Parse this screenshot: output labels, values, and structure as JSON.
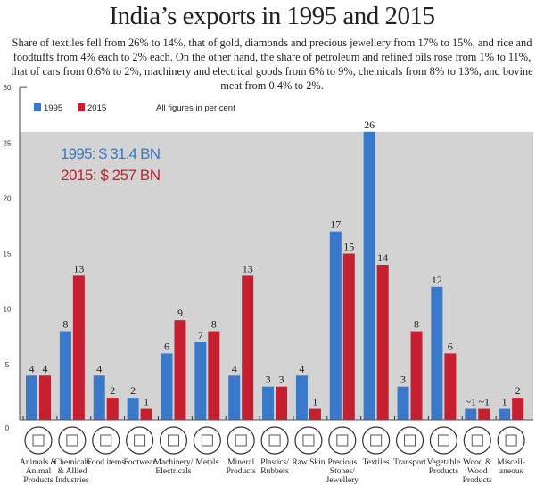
{
  "title": "India’s exports in 1995 and 2015",
  "subtitle": "Share of textiles fell from 26% to 14%, that of gold, diamonds and precious jewellery from 17% to 15%, and rice and foodtuffs from 4% each to 2% each. On the other hand, the share of petroleum and refined oils rose from 1% to 11%, that of cars from 0.6% to 2%, machinery and electrical goods from 6% to 9%, chemicals from 8% to 13%, and bovine meat from 0.4% to 2%.",
  "chart_data": {
    "type": "bar",
    "ylim": [
      0,
      30
    ],
    "yticks": [
      0,
      5,
      10,
      15,
      20,
      25,
      30
    ],
    "legend": "top-left",
    "note": "All figures in per cent",
    "totals": [
      "1995: $ 31.4 BN",
      "2015: $ 257 BN"
    ],
    "colors": {
      "1995": "#3a78c9",
      "2015": "#c62030",
      "background": "#d3d3d3"
    },
    "categories": [
      "Animals & Animal Products",
      "Chemicals & Allied Industries",
      "Food items",
      "Footwear",
      "Machinery/ Electricals",
      "Metals",
      "Mineral Products",
      "Plastics/ Rubbers",
      "Raw Skin",
      "Precious Stones/ Jewellery",
      "Textiles",
      "Transport",
      "Vegetable Products",
      "Wood & Wood Products",
      "Miscell- aneous"
    ],
    "icons": [
      "chicken-icon",
      "flask-icon",
      "bowl-icon",
      "shoe-icon",
      "drill-icon",
      "metal-sheet-icon",
      "mine-cart-icon",
      "bottle-icon",
      "hide-icon",
      "diamond-icon",
      "shirt-icon",
      "truck-icon",
      "tomato-icon",
      "log-icon",
      "box-icon"
    ],
    "series": [
      {
        "name": "1995",
        "values": [
          4,
          8,
          4,
          2,
          6,
          7,
          4,
          3,
          4,
          17,
          26,
          3,
          12,
          1,
          1
        ],
        "labels": [
          "4",
          "8",
          "4",
          "2",
          "6",
          "7",
          "4",
          "3",
          "4",
          "17",
          "26",
          "3",
          "12",
          "~1",
          "1"
        ]
      },
      {
        "name": "2015",
        "values": [
          4,
          13,
          2,
          1,
          9,
          8,
          13,
          3,
          1,
          15,
          14,
          8,
          6,
          1,
          2
        ],
        "labels": [
          "4",
          "13",
          "2",
          "1",
          "9",
          "8",
          "13",
          "3",
          "1",
          "15",
          "14",
          "8",
          "6",
          "~1",
          "2"
        ]
      }
    ]
  }
}
